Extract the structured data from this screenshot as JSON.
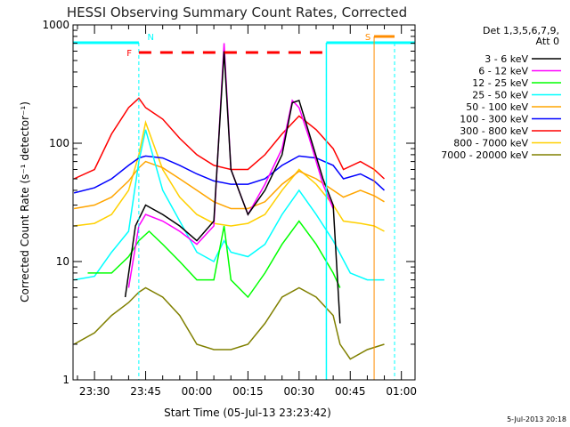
{
  "chart_data": {
    "type": "line",
    "title": "HESSI Observing Summary Count Rates, Corrected",
    "xlabel": "Start Time (05-Jul-13 23:23:42)",
    "ylabel": "Corrected Count Rate (s⁻¹ detector⁻¹)",
    "y_scale": "log",
    "ylim": [
      1,
      1000
    ],
    "xlim": [
      "23:23:42",
      "01:04:00"
    ],
    "x_ticks": [
      "23:30",
      "23:45",
      "00:00",
      "00:15",
      "00:30",
      "00:45",
      "01:00"
    ],
    "y_ticks": [
      "1",
      "10",
      "100",
      "1000"
    ],
    "legend_position": "right",
    "legend_header": [
      "Det 1,3,5,6,7,9,",
      "Att 0"
    ],
    "footer_date": "5-Jul-2013 20:18",
    "series": [
      {
        "name": "3 - 6 keV",
        "color": "#000000",
        "x": [
          "23:39",
          "23:42",
          "23:45",
          "23:50",
          "23:55",
          "00:00",
          "00:05",
          "00:08",
          "00:10",
          "00:15",
          "00:20",
          "00:25",
          "00:28",
          "00:30",
          "00:33",
          "00:37",
          "00:40",
          "00:42"
        ],
        "y": [
          5,
          20,
          30,
          25,
          20,
          15,
          22,
          600,
          60,
          25,
          40,
          80,
          220,
          230,
          120,
          50,
          30,
          3
        ]
      },
      {
        "name": "6 - 12 keV",
        "color": "#ff00ff",
        "x": [
          "23:40",
          "23:43",
          "23:45",
          "23:50",
          "23:55",
          "00:00",
          "00:05",
          "00:08",
          "00:10",
          "00:15",
          "00:20",
          "00:25",
          "00:28",
          "00:30",
          "00:33",
          "00:37",
          "00:40"
        ],
        "y": [
          6,
          20,
          25,
          22,
          18,
          14,
          20,
          700,
          60,
          25,
          45,
          90,
          230,
          200,
          110,
          45,
          28
        ]
      },
      {
        "name": "12 - 25 keV",
        "color": "#00ff00",
        "x": [
          "23:28",
          "23:35",
          "23:40",
          "23:43",
          "23:46",
          "23:50",
          "23:55",
          "00:00",
          "00:05",
          "00:08",
          "00:10",
          "00:15",
          "00:20",
          "00:25",
          "00:30",
          "00:35",
          "00:40",
          "00:42"
        ],
        "y": [
          8,
          8,
          11,
          15,
          18,
          14,
          10,
          7,
          7,
          20,
          7,
          5,
          8,
          14,
          22,
          14,
          8,
          6
        ]
      },
      {
        "name": "25 - 50 keV",
        "color": "#00ffff",
        "x": [
          "23:24",
          "23:30",
          "23:35",
          "23:40",
          "23:43",
          "23:45",
          "23:50",
          "23:55",
          "00:00",
          "00:05",
          "00:08",
          "00:10",
          "00:15",
          "00:20",
          "00:25",
          "00:30",
          "00:35",
          "00:40",
          "00:45",
          "00:50",
          "00:55"
        ],
        "y": [
          7,
          7.5,
          12,
          18,
          70,
          130,
          40,
          22,
          12,
          10,
          15,
          12,
          11,
          14,
          25,
          40,
          25,
          15,
          8,
          7,
          7
        ]
      },
      {
        "name": "50 - 100 keV",
        "color": "#ffa500",
        "x": [
          "23:24",
          "23:30",
          "23:35",
          "23:40",
          "23:43",
          "23:45",
          "23:50",
          "23:55",
          "00:00",
          "00:05",
          "00:10",
          "00:15",
          "00:20",
          "00:25",
          "00:30",
          "00:35",
          "00:40",
          "00:43",
          "00:48",
          "00:52",
          "00:55"
        ],
        "y": [
          28,
          30,
          35,
          48,
          62,
          70,
          62,
          50,
          40,
          32,
          28,
          28,
          32,
          45,
          58,
          50,
          40,
          35,
          40,
          36,
          32
        ]
      },
      {
        "name": "100 - 300 keV",
        "color": "#0000ff",
        "x": [
          "23:24",
          "23:30",
          "23:35",
          "23:40",
          "23:43",
          "23:45",
          "23:50",
          "23:55",
          "00:00",
          "00:05",
          "00:10",
          "00:15",
          "00:20",
          "00:25",
          "00:30",
          "00:35",
          "00:40",
          "00:43",
          "00:48",
          "00:52",
          "00:55"
        ],
        "y": [
          38,
          42,
          50,
          65,
          75,
          78,
          75,
          65,
          55,
          48,
          45,
          45,
          50,
          65,
          78,
          75,
          65,
          50,
          55,
          48,
          40
        ]
      },
      {
        "name": "300 - 800 keV",
        "color": "#ff0000",
        "x": [
          "23:24",
          "23:30",
          "23:35",
          "23:40",
          "23:43",
          "23:45",
          "23:50",
          "23:55",
          "00:00",
          "00:05",
          "00:10",
          "00:15",
          "00:20",
          "00:25",
          "00:30",
          "00:35",
          "00:40",
          "00:43",
          "00:48",
          "00:52",
          "00:55"
        ],
        "y": [
          50,
          60,
          120,
          200,
          240,
          200,
          160,
          110,
          80,
          65,
          60,
          60,
          80,
          120,
          170,
          130,
          90,
          60,
          70,
          60,
          50
        ]
      },
      {
        "name": "800 - 7000 keV",
        "color": "#ffd000",
        "x": [
          "23:24",
          "23:30",
          "23:35",
          "23:40",
          "23:43",
          "23:45",
          "23:50",
          "23:55",
          "00:00",
          "00:05",
          "00:10",
          "00:15",
          "00:20",
          "00:25",
          "00:30",
          "00:35",
          "00:40",
          "00:43",
          "00:48",
          "00:52",
          "00:55"
        ],
        "y": [
          20,
          21,
          25,
          40,
          80,
          150,
          60,
          35,
          25,
          21,
          20,
          21,
          25,
          40,
          60,
          45,
          30,
          22,
          21,
          20,
          18
        ]
      },
      {
        "name": "7000 - 20000 keV",
        "color": "#808000",
        "x": [
          "23:24",
          "23:30",
          "23:35",
          "23:40",
          "23:43",
          "23:45",
          "23:50",
          "23:55",
          "00:00",
          "00:05",
          "00:10",
          "00:15",
          "00:20",
          "00:25",
          "00:30",
          "00:35",
          "00:40",
          "00:42",
          "00:45",
          "00:50",
          "00:55"
        ],
        "y": [
          2,
          2.5,
          3.5,
          4.5,
          5.5,
          6,
          5,
          3.5,
          2,
          1.8,
          1.8,
          2,
          3,
          5,
          6,
          5,
          3.5,
          2,
          1.5,
          1.8,
          2
        ]
      }
    ],
    "annotations": [
      {
        "label": "N",
        "color": "#00ffff"
      },
      {
        "label": "F",
        "color": "#ff0000"
      },
      {
        "label": "S",
        "color": "#ff8c00"
      }
    ]
  }
}
